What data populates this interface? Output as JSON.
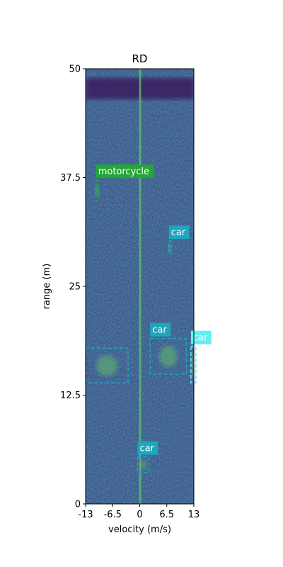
{
  "chart_data": {
    "type": "heatmap",
    "title": "RD",
    "xlabel": "velocity (m/s)",
    "ylabel": "range (m)",
    "xlim": [
      -13,
      13
    ],
    "ylim": [
      0,
      50
    ],
    "x_ticks": [
      {
        "value": -13,
        "label": "-13"
      },
      {
        "value": -6.5,
        "label": "-6.5"
      },
      {
        "value": 0,
        "label": "0"
      },
      {
        "value": 6.5,
        "label": "6.5"
      },
      {
        "value": 13,
        "label": "13"
      }
    ],
    "y_ticks": [
      {
        "value": 0,
        "label": "0"
      },
      {
        "value": 12.5,
        "label": "12.5"
      },
      {
        "value": 25,
        "label": "25"
      },
      {
        "value": 37.5,
        "label": "37.5"
      },
      {
        "value": 50,
        "label": "50"
      }
    ],
    "colormap": "viridis",
    "colors": {
      "background": "#3b5a8c",
      "dark_band": "#3a1d5e",
      "zero_doppler": "#5cc46a",
      "motorcycle": "#22a737",
      "car": "#1fa6bf",
      "car_light": "#5ff0f0"
    },
    "detections": [
      {
        "label": "motorcycle",
        "color": "motorcycle",
        "vmin": -10.5,
        "vmax": -10.0,
        "rmin": 34.8,
        "rmax": 37.2
      },
      {
        "label": "car",
        "color": "car",
        "vmin": 7.0,
        "vmax": 7.5,
        "rmin": 28.8,
        "rmax": 30.2
      },
      {
        "label": "car",
        "color": "car",
        "vmin": 2.5,
        "vmax": 11.2,
        "rmin": 14.9,
        "rmax": 19.0
      },
      {
        "label": "car",
        "color": "car_light",
        "vmin": 12.3,
        "vmax": 13.5,
        "rmin": 13.9,
        "rmax": 18.1
      },
      {
        "label": "",
        "color": "car",
        "vmin": -13.0,
        "vmax": -2.8,
        "rmin": 13.9,
        "rmax": 17.9
      },
      {
        "label": "car",
        "color": "car",
        "vmin": -0.5,
        "vmax": 2.2,
        "rmin": 3.6,
        "rmax": 5.4
      }
    ]
  }
}
